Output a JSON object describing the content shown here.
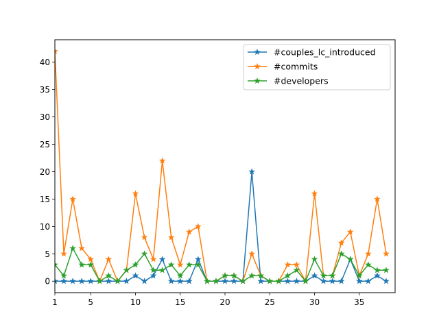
{
  "chart_data": {
    "type": "line",
    "marker": "star",
    "x": [
      1,
      2,
      3,
      4,
      5,
      6,
      7,
      8,
      9,
      10,
      11,
      12,
      13,
      14,
      15,
      16,
      17,
      18,
      19,
      20,
      21,
      22,
      23,
      24,
      25,
      26,
      27,
      28,
      29,
      30,
      31,
      32,
      33,
      34,
      35,
      36,
      37,
      38
    ],
    "series": [
      {
        "name": "#couples_lc_introduced",
        "color": "#1f77b4",
        "values": [
          0,
          0,
          0,
          0,
          0,
          0,
          0,
          0,
          0,
          1,
          0,
          1,
          4,
          0,
          0,
          0,
          4,
          0,
          0,
          0,
          0,
          0,
          20,
          0,
          0,
          0,
          0,
          0,
          0,
          1,
          0,
          0,
          0,
          4,
          0,
          0,
          1,
          0
        ]
      },
      {
        "name": "#commits",
        "color": "#ff7f0e",
        "values": [
          42,
          5,
          15,
          6,
          4,
          0,
          4,
          0,
          2,
          16,
          8,
          4,
          22,
          8,
          3,
          9,
          10,
          0,
          0,
          1,
          1,
          0,
          5,
          1,
          0,
          0,
          3,
          3,
          0,
          16,
          1,
          1,
          7,
          9,
          1,
          5,
          15,
          5
        ]
      },
      {
        "name": "#developers",
        "color": "#2ca02c",
        "values": [
          3,
          1,
          6,
          3,
          3,
          0,
          1,
          0,
          2,
          3,
          5,
          2,
          2,
          3,
          1,
          3,
          3,
          0,
          0,
          1,
          1,
          0,
          1,
          1,
          0,
          0,
          1,
          2,
          0,
          4,
          1,
          1,
          5,
          4,
          1,
          3,
          2,
          2
        ]
      }
    ],
    "xlim": [
      1,
      39
    ],
    "ylim": [
      -2.1,
      44.1
    ],
    "xticks": [
      1,
      5,
      10,
      15,
      20,
      25,
      30,
      35
    ],
    "yticks": [
      0,
      5,
      10,
      15,
      20,
      25,
      30,
      35,
      40
    ],
    "title": "",
    "xlabel": "",
    "ylabel": "",
    "grid": false,
    "legend_position": "upper-right"
  }
}
